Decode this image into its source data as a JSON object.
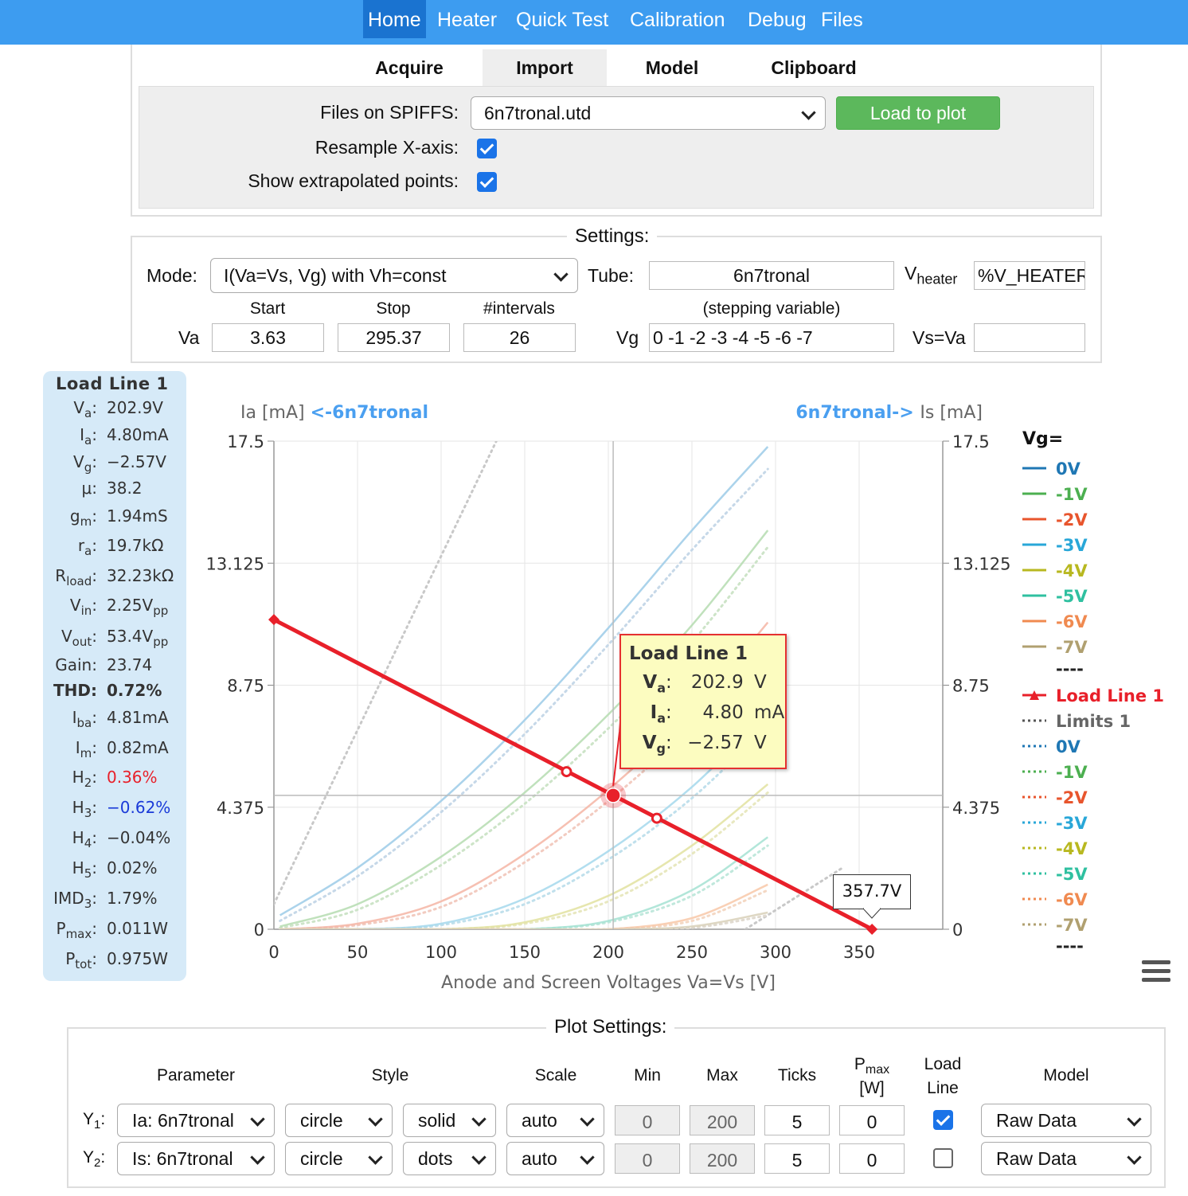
{
  "nav": {
    "items": [
      "Home",
      "Heater",
      "Quick Test",
      "Calibration",
      "Debug",
      "Files"
    ],
    "active": "Home"
  },
  "tabs": [
    "Acquire",
    "Import",
    "Model",
    "Clipboard"
  ],
  "active_tab": "Import",
  "import": {
    "files_label": "Files on SPIFFS:",
    "file_selected": "6n7tronal.utd",
    "load_button": "Load to plot",
    "resample_label": "Resample X-axis:",
    "resample_checked": true,
    "extrapolated_label": "Show extrapolated points:",
    "extrapolated_checked": true
  },
  "settings": {
    "legend": "Settings:",
    "mode_label": "Mode:",
    "mode_value": "I(Va=Vs, Vg) with Vh=const",
    "tube_label": "Tube:",
    "tube_value": "6n7tronal",
    "vheater_label_main": "V",
    "vheater_label_sub": "heater",
    "vheater_value": "%V_HEATER%",
    "start_label": "Start",
    "stop_label": "Stop",
    "intervals_label": "#intervals",
    "stepping_label": "(stepping variable)",
    "va_label": "Va",
    "va_start": "3.63",
    "va_stop": "295.37",
    "va_intervals": "26",
    "vg_label": "Vg",
    "vg_value": "0 -1 -2 -3 -4 -5 -6 -7",
    "vs_label": "Vs=Va",
    "vs_value": ""
  },
  "info_panel": {
    "title": "Load Line 1",
    "rows": [
      {
        "key": "V",
        "sub": "a",
        "value": "202.9V"
      },
      {
        "key": "I",
        "sub": "a",
        "value": "4.80mA"
      },
      {
        "key": "V",
        "sub": "g",
        "value": "−2.57V"
      },
      {
        "key": "μ",
        "sub": "",
        "value": "38.2"
      },
      {
        "key": "g",
        "sub": "m",
        "value": "1.94mS"
      },
      {
        "key": "r",
        "sub": "a",
        "value": "19.7kΩ"
      },
      {
        "key": "R",
        "sub": "load",
        "value": "32.23kΩ"
      },
      {
        "key": "V",
        "sub": "in",
        "value": "2.25V",
        "vsub": "pp"
      },
      {
        "key": "V",
        "sub": "out",
        "value": "53.4V",
        "vsub": "pp"
      },
      {
        "key": "Gain",
        "sub": "",
        "value": "23.74"
      },
      {
        "key": "THD",
        "sub": "",
        "value": "0.72%",
        "bold": true
      },
      {
        "key": "I",
        "sub": "ba",
        "value": "4.81mA"
      },
      {
        "key": "I",
        "sub": "m",
        "value": "0.82mA"
      },
      {
        "key": "H",
        "sub": "2",
        "value": "0.36%",
        "color": "#e8202a"
      },
      {
        "key": "H",
        "sub": "3",
        "value": "−0.62%",
        "color": "#1a3ad8"
      },
      {
        "key": "H",
        "sub": "4",
        "value": "−0.04%"
      },
      {
        "key": "H",
        "sub": "5",
        "value": "0.02%"
      },
      {
        "key": "IMD",
        "sub": "3",
        "value": "1.79%"
      },
      {
        "key": "P",
        "sub": "max",
        "value": "0.011W"
      },
      {
        "key": "P",
        "sub": "tot",
        "value": "0.975W"
      }
    ]
  },
  "chart_data": {
    "type": "line",
    "xlabel": "Anode and Screen Voltages Va=Vs [V]",
    "ylabel_left": "Ia [mA]",
    "ylabel_left_link": "<-6n7tronal",
    "ylabel_right": "Is [mA]",
    "ylabel_right_link": "6n7tronal->",
    "xlim": [
      0,
      400
    ],
    "ylim": [
      0,
      17.5
    ],
    "x_ticks": [
      0,
      50,
      100,
      150,
      200,
      250,
      300,
      350
    ],
    "y_ticks": [
      "0",
      "4.375",
      "8.75",
      "13.125",
      "17.5"
    ],
    "grid": true,
    "legend_title": "Vg=",
    "legend_position": "right",
    "legend_solid": [
      {
        "name": "0V",
        "color": "#1f77b4"
      },
      {
        "name": "-1V",
        "color": "#4caf50"
      },
      {
        "name": "-2V",
        "color": "#e8552d"
      },
      {
        "name": "-3V",
        "color": "#29a7d8"
      },
      {
        "name": "-4V",
        "color": "#b8b820"
      },
      {
        "name": "-5V",
        "color": "#2fc0a0"
      },
      {
        "name": "-6V",
        "color": "#f08a50"
      },
      {
        "name": "-7V",
        "color": "#b0a070"
      }
    ],
    "legend_separator": "----",
    "load_line_name": "Load Line 1",
    "limits_name": "Limits 1",
    "legend_dotted": [
      {
        "name": "0V",
        "color": "#1f77b4"
      },
      {
        "name": "-1V",
        "color": "#4caf50"
      },
      {
        "name": "-2V",
        "color": "#e8552d"
      },
      {
        "name": "-3V",
        "color": "#29a7d8"
      },
      {
        "name": "-4V",
        "color": "#b8b820"
      },
      {
        "name": "-5V",
        "color": "#2fc0a0"
      },
      {
        "name": "-6V",
        "color": "#f08a50"
      },
      {
        "name": "-7V",
        "color": "#b0a070"
      }
    ],
    "curves_x": [
      3.63,
      50,
      100,
      150,
      200,
      250,
      295.37
    ],
    "series_ia": [
      {
        "vg": 0,
        "color": "#9ccbe8",
        "values": [
          0.5,
          2.2,
          4.6,
          7.5,
          10.8,
          14.3,
          17.3
        ]
      },
      {
        "vg": -1,
        "color": "#b5dcb0",
        "values": [
          0.1,
          0.9,
          2.6,
          4.9,
          7.7,
          10.9,
          14.3
        ]
      },
      {
        "vg": -2,
        "color": "#f4b5a5",
        "values": [
          0.0,
          0.2,
          1.0,
          2.7,
          5.0,
          7.8,
          11.0
        ]
      },
      {
        "vg": -3,
        "color": "#a5d8ec",
        "values": [
          0.0,
          0.0,
          0.2,
          1.1,
          2.8,
          5.1,
          7.8
        ]
      },
      {
        "vg": -4,
        "color": "#e2e2a0",
        "values": [
          0.0,
          0.0,
          0.0,
          0.25,
          1.2,
          3.0,
          5.2
        ]
      },
      {
        "vg": -5,
        "color": "#a5e2d2",
        "values": [
          0.0,
          0.0,
          0.0,
          0.0,
          0.3,
          1.4,
          3.3
        ]
      },
      {
        "vg": -6,
        "color": "#f8c8a8",
        "values": [
          0.0,
          0.0,
          0.0,
          0.0,
          0.0,
          0.4,
          1.6
        ]
      },
      {
        "vg": -7,
        "color": "#d8d0b8",
        "values": [
          0.0,
          0.0,
          0.0,
          0.0,
          0.0,
          0.1,
          0.6
        ]
      }
    ],
    "series_is_dotted": [
      {
        "vg": 0,
        "color": "#c6d8e8",
        "values": [
          0.3,
          1.9,
          4.2,
          7.0,
          10.2,
          13.6,
          16.5
        ]
      },
      {
        "vg": -1,
        "color": "#cde4c8",
        "values": [
          0.05,
          0.7,
          2.3,
          4.5,
          7.2,
          10.3,
          13.7
        ]
      },
      {
        "vg": -2,
        "color": "#f2cbc0",
        "values": [
          0.0,
          0.15,
          0.8,
          2.4,
          4.6,
          7.3,
          10.4
        ]
      },
      {
        "vg": -3,
        "color": "#c0e0ec",
        "values": [
          0.0,
          0.0,
          0.15,
          0.9,
          2.5,
          4.7,
          7.3
        ]
      },
      {
        "vg": -4,
        "color": "#e8e8c0",
        "values": [
          0.0,
          0.0,
          0.0,
          0.2,
          1.0,
          2.7,
          4.9
        ]
      },
      {
        "vg": -5,
        "color": "#c0e8dc",
        "values": [
          0.0,
          0.0,
          0.0,
          0.0,
          0.25,
          1.2,
          3.0
        ]
      },
      {
        "vg": -6,
        "color": "#f4d8c4",
        "values": [
          0.0,
          0.0,
          0.0,
          0.0,
          0.0,
          0.3,
          1.4
        ]
      },
      {
        "vg": -7,
        "color": "#e0dad0",
        "values": [
          0.0,
          0.0,
          0.0,
          0.0,
          0.0,
          0.05,
          0.5
        ]
      }
    ],
    "limits_lines": [
      {
        "points": [
          [
            0,
            0.9
          ],
          [
            133,
            17.5
          ]
        ],
        "color": "#c8c8c8"
      },
      {
        "points": [
          [
            282,
            0
          ],
          [
            340,
            2.2
          ]
        ],
        "color": "#c8c8c8"
      }
    ],
    "load_line": {
      "color": "#e8202a",
      "start": [
        0,
        11.1
      ],
      "end": [
        357.7,
        0
      ],
      "operating_point": [
        202.9,
        4.8
      ],
      "swing_points": [
        [
          175,
          5.65
        ],
        [
          229,
          3.98
        ]
      ]
    },
    "annotation_end": "357.7V",
    "crosshair": {
      "x": 202.9,
      "y": 4.8
    }
  },
  "tooltip": {
    "title": "Load Line 1",
    "rows": [
      {
        "key": "V",
        "sub": "a",
        "value": "202.9",
        "unit": "V"
      },
      {
        "key": "I",
        "sub": "a",
        "value": "4.80",
        "unit": "mA"
      },
      {
        "key": "V",
        "sub": "g",
        "value": "−2.57",
        "unit": "V"
      }
    ]
  },
  "plot_settings": {
    "legend": "Plot Settings:",
    "headers": {
      "parameter": "Parameter",
      "style": "Style",
      "scale": "Scale",
      "min": "Min",
      "max": "Max",
      "ticks": "Ticks",
      "pmax_main": "P",
      "pmax_sub": "max",
      "pmax_unit": "[W]",
      "loadline_1": "Load",
      "loadline_2": "Line",
      "model": "Model"
    },
    "rows": [
      {
        "label": "Y",
        "sub": "1",
        "parameter": "Ia: 6n7tronal",
        "style": "circle",
        "line": "solid",
        "scale": "auto",
        "min": "0",
        "max": "200",
        "ticks": "5",
        "pmax": "0",
        "load_line": true,
        "model": "Raw Data"
      },
      {
        "label": "Y",
        "sub": "2",
        "parameter": "Is: 6n7tronal",
        "style": "circle",
        "line": "dots",
        "scale": "auto",
        "min": "0",
        "max": "200",
        "ticks": "5",
        "pmax": "0",
        "load_line": false,
        "model": "Raw Data"
      }
    ]
  }
}
